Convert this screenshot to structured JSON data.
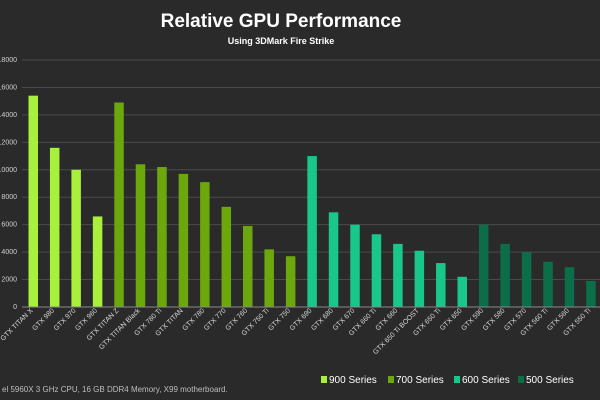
{
  "chart_data": {
    "type": "bar",
    "title": "Relative GPU Performance",
    "subtitle": "Using 3DMark Fire Strike",
    "xlabel": "",
    "ylabel": "",
    "ylim": [
      0,
      18000
    ],
    "yticks": [
      0,
      2000,
      4000,
      6000,
      8000,
      10000,
      12000,
      14000,
      16000,
      18000
    ],
    "ytick_labels": [
      "0",
      "2000",
      "4000",
      "6000",
      "8000",
      "10000",
      "12000",
      "14000",
      "16000",
      "18000"
    ],
    "grid": true,
    "legend_position": "bottom-right",
    "footnote": "el 5960X 3 GHz CPU, 16 GB DDR4 Memory, X99 motherboard.",
    "series": [
      {
        "name": "900 Series",
        "color": "#a8f03c"
      },
      {
        "name": "700 Series",
        "color": "#6ca70c"
      },
      {
        "name": "600 Series",
        "color": "#19c78a"
      },
      {
        "name": "500 Series",
        "color": "#0c6e48"
      }
    ],
    "bars": [
      {
        "label": "GTX TITAN X",
        "value": 15400,
        "series": 0
      },
      {
        "label": "GTX 980",
        "value": 11600,
        "series": 0
      },
      {
        "label": "GTX 970",
        "value": 10000,
        "series": 0
      },
      {
        "label": "GTX 960",
        "value": 6600,
        "series": 0
      },
      {
        "label": "GTX TITAN Z",
        "value": 14900,
        "series": 1
      },
      {
        "label": "GTX TITAN Black",
        "value": 10400,
        "series": 1
      },
      {
        "label": "GTX 780 Ti",
        "value": 10200,
        "series": 1
      },
      {
        "label": "GTX TITAN",
        "value": 9700,
        "series": 1
      },
      {
        "label": "GTX 780",
        "value": 9100,
        "series": 1
      },
      {
        "label": "GTX 770",
        "value": 7300,
        "series": 1
      },
      {
        "label": "GTX 760",
        "value": 5900,
        "series": 1
      },
      {
        "label": "GTX 750 Ti",
        "value": 4200,
        "series": 1
      },
      {
        "label": "GTX 750",
        "value": 3700,
        "series": 1
      },
      {
        "label": "GTX 690",
        "value": 11000,
        "series": 2
      },
      {
        "label": "GTX 680",
        "value": 6900,
        "series": 2
      },
      {
        "label": "GTX 670",
        "value": 6000,
        "series": 2
      },
      {
        "label": "GTX 660 Ti",
        "value": 5300,
        "series": 2
      },
      {
        "label": "GTX 660",
        "value": 4600,
        "series": 2
      },
      {
        "label": "GTX 650 Ti BOOST",
        "value": 4100,
        "series": 2
      },
      {
        "label": "GTX 650 Ti",
        "value": 3200,
        "series": 2
      },
      {
        "label": "GTX 650",
        "value": 2200,
        "series": 2
      },
      {
        "label": "GTX 590",
        "value": 6000,
        "series": 3
      },
      {
        "label": "GTX 580",
        "value": 4600,
        "series": 3
      },
      {
        "label": "GTX 570",
        "value": 4000,
        "series": 3
      },
      {
        "label": "GTX 560 Ti",
        "value": 3300,
        "series": 3
      },
      {
        "label": "GTX 560",
        "value": 2900,
        "series": 3
      },
      {
        "label": "GTX 550 Ti",
        "value": 1900,
        "series": 3
      }
    ]
  }
}
